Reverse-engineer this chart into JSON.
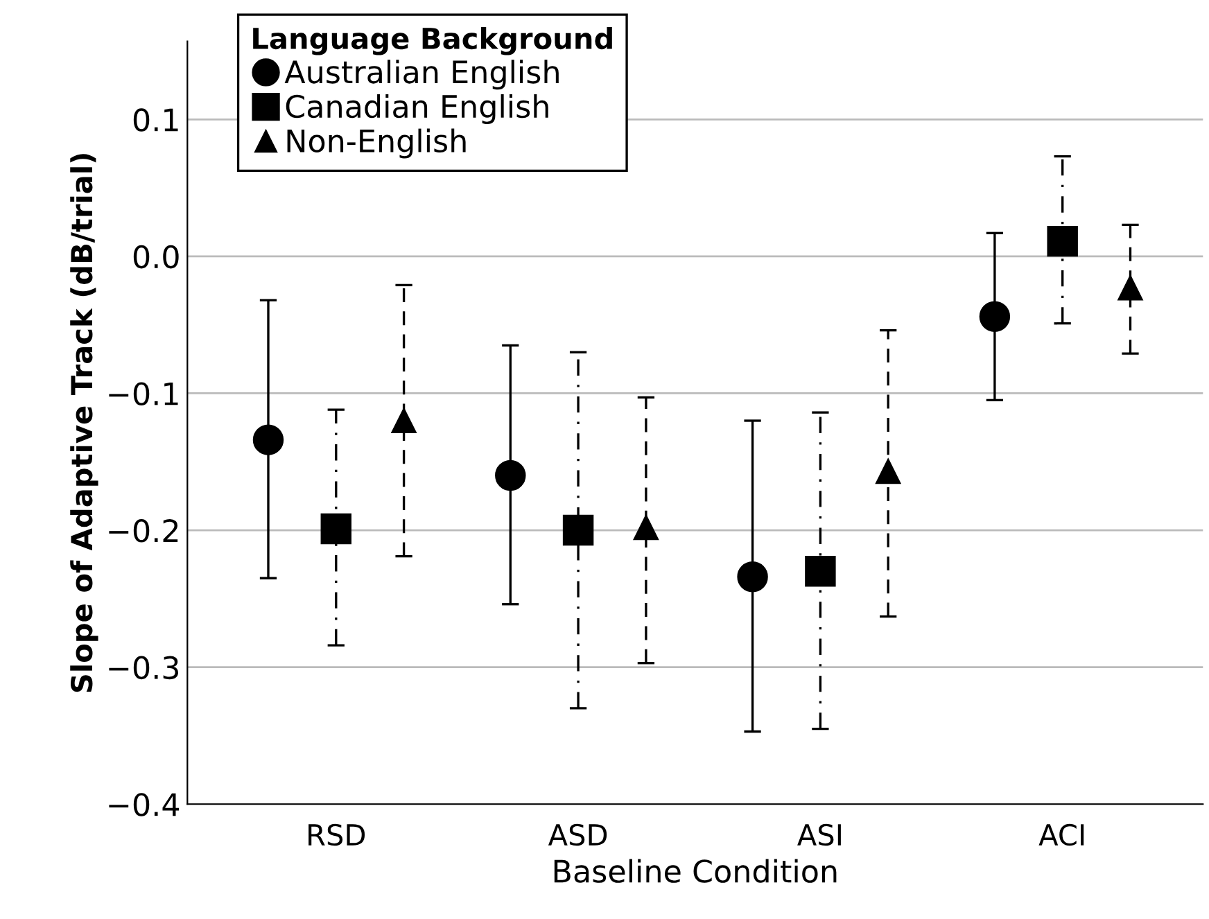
{
  "chart_data": {
    "type": "scatter",
    "xlabel": "Baseline Condition",
    "ylabel": "Slope of Adaptive Track (dB/trial)",
    "legend_title": "Language Background",
    "categories": [
      "RSD",
      "ASD",
      "ASI",
      "ACI"
    ],
    "ylim": [
      -0.4,
      0.157
    ],
    "yticks": [
      {
        "value": -0.4,
        "label": "−0.4"
      },
      {
        "value": -0.3,
        "label": "−0.3"
      },
      {
        "value": -0.2,
        "label": "−0.2"
      },
      {
        "value": -0.1,
        "label": "−0.1"
      },
      {
        "value": 0.0,
        "label": "0.0"
      },
      {
        "value": 0.1,
        "label": "0.1"
      }
    ],
    "grid": "y",
    "legend": "top left",
    "series": [
      {
        "name": "Australian English",
        "color": "#000000",
        "marker": "circle",
        "line_style": "solid",
        "values": [
          -0.134,
          -0.16,
          -0.234,
          -0.044
        ],
        "errors": [
          [
            -0.235,
            -0.032
          ],
          [
            -0.254,
            -0.065
          ],
          [
            -0.347,
            -0.12
          ],
          [
            -0.105,
            0.017
          ]
        ]
      },
      {
        "name": "Canadian English",
        "color": "#000000",
        "marker": "square",
        "line_style": "dashdot",
        "values": [
          -0.199,
          -0.2,
          -0.23,
          0.011
        ],
        "errors": [
          [
            -0.284,
            -0.112
          ],
          [
            -0.33,
            -0.07
          ],
          [
            -0.345,
            -0.114
          ],
          [
            -0.049,
            0.073
          ]
        ]
      },
      {
        "name": "Non-English",
        "color": "#000000",
        "marker": "triangle",
        "line_style": "dashed",
        "values": [
          -0.12,
          -0.198,
          -0.157,
          -0.023
        ],
        "errors": [
          [
            -0.219,
            -0.021
          ],
          [
            -0.297,
            -0.103
          ],
          [
            -0.263,
            -0.054
          ],
          [
            -0.071,
            0.023
          ]
        ]
      }
    ]
  }
}
